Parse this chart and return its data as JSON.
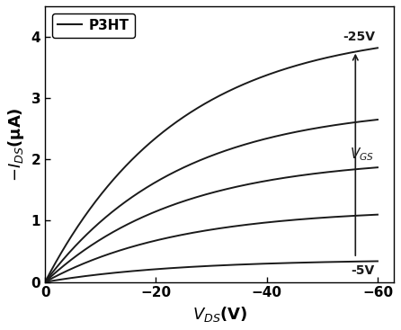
{
  "legend_label": "P3HT",
  "xlabel": "$V_{DS}$(V)",
  "ylabel": "$-I_{DS}$(μA)",
  "ylim": [
    0,
    4.5
  ],
  "xlim": [
    0,
    -63
  ],
  "yticks": [
    0.0,
    1.0,
    2.0,
    3.0,
    4.0
  ],
  "xticks": [
    0,
    -20,
    -40,
    -60
  ],
  "saturation_currents": [
    0.34,
    1.1,
    1.87,
    2.65,
    3.82
  ],
  "vgs_values": [
    -5,
    -10,
    -15,
    -20,
    -25
  ],
  "background_color": "#ffffff",
  "line_color": "#1a1a1a",
  "label_minus25": "-25V",
  "label_minus5": "-5V",
  "label_vgs": "$V_{GS}$",
  "figsize": [
    4.46,
    3.67
  ],
  "dpi": 100,
  "curve_alpha": 2.5,
  "vds_end": -60
}
